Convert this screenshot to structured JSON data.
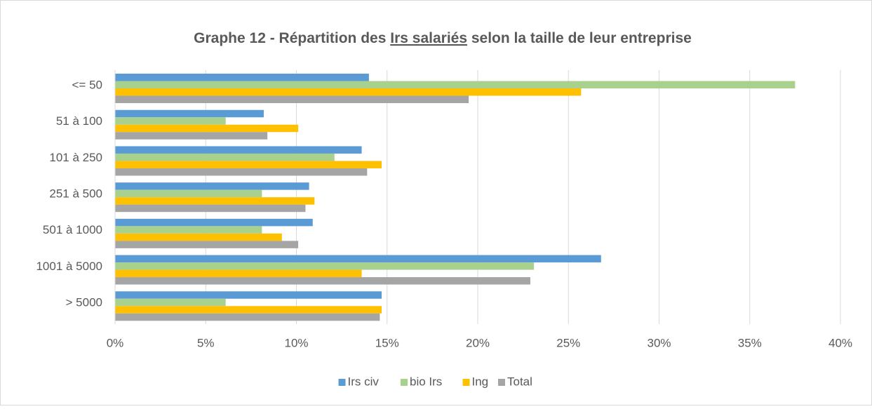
{
  "chart_data": {
    "type": "hbar",
    "title_before": "Graphe 12  -  Répartition des ",
    "title_underlined": "Irs salariés",
    "title_after": " selon la taille de leur entreprise",
    "categories": [
      "<= 50",
      "51 à 100",
      "101 à 250",
      "251 à 500",
      "501 à 1000",
      "1001 à 5000",
      "> 5000"
    ],
    "series": [
      {
        "name": "Irs civ",
        "color": "#5b9bd5",
        "values": [
          14.0,
          8.2,
          13.6,
          10.7,
          10.9,
          26.8,
          14.7
        ]
      },
      {
        "name": "bio Irs",
        "color": "#a9d18e",
        "values": [
          37.5,
          6.1,
          12.1,
          8.1,
          8.1,
          23.1,
          6.1
        ]
      },
      {
        "name": "Ing",
        "color": "#ffc000",
        "values": [
          25.7,
          10.1,
          14.7,
          11.0,
          9.2,
          13.6,
          14.7
        ]
      },
      {
        "name": "Total",
        "color": "#a5a5a5",
        "values": [
          19.5,
          8.4,
          13.9,
          10.5,
          10.1,
          22.9,
          14.6
        ]
      }
    ],
    "xlim": [
      0,
      40
    ],
    "xticks": [
      {
        "value": 0,
        "label": "0%"
      },
      {
        "value": 5,
        "label": "5%"
      },
      {
        "value": 10,
        "label": "10%"
      },
      {
        "value": 15,
        "label": "15%"
      },
      {
        "value": 20,
        "label": "20%"
      },
      {
        "value": 25,
        "label": "25%"
      },
      {
        "value": 30,
        "label": "30%"
      },
      {
        "value": 35,
        "label": "35%"
      },
      {
        "value": 40,
        "label": "40%"
      }
    ],
    "grid": true,
    "legend": "bottom"
  }
}
